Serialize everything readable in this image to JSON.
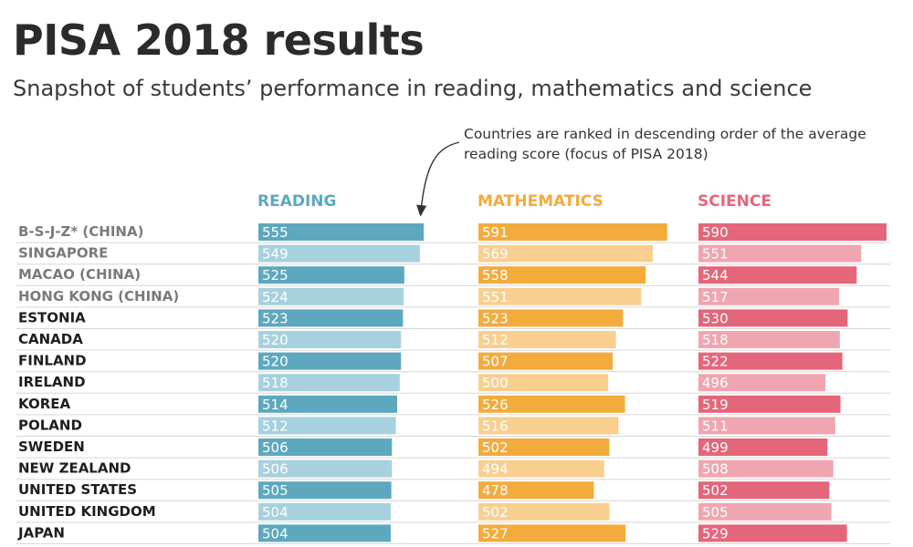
{
  "title": "PISA 2018 results",
  "subtitle": "Snapshot of students’ performance in reading, mathematics and science",
  "note": "Countries are ranked in descending order of the average reading score (focus of PISA 2018)",
  "colors": {
    "reading_dark": "#5da8bf",
    "reading_light": "#a7d1de",
    "math_dark": "#f3ab3c",
    "math_light": "#f8cf8f",
    "science_dark": "#e4667a",
    "science_light": "#f0a6b1",
    "country_gray": "#7a7a7a",
    "country_black": "#1e1e1e",
    "separator": "#d6d6d6"
  },
  "chart_data": {
    "type": "bar",
    "orientation": "horizontal",
    "categories": [
      "B-S-J-Z* (CHINA)",
      "SINGAPORE",
      "MACAO (CHINA)",
      "HONG KONG (CHINA)",
      "ESTONIA",
      "CANADA",
      "FINLAND",
      "IRELAND",
      "KOREA",
      "POLAND",
      "SWEDEN",
      "NEW ZEALAND",
      "UNITED STATES",
      "UNITED KINGDOM",
      "JAPAN"
    ],
    "category_emphasis": [
      "gray",
      "gray",
      "gray",
      "gray",
      "black",
      "black",
      "black",
      "black",
      "black",
      "black",
      "black",
      "black",
      "black",
      "black",
      "black"
    ],
    "series": [
      {
        "name": "READING",
        "color": "#5da8bf",
        "values": [
          555,
          549,
          525,
          524,
          523,
          520,
          520,
          518,
          514,
          512,
          506,
          506,
          505,
          504,
          504
        ]
      },
      {
        "name": "MATHEMATICS",
        "color": "#f3ab3c",
        "values": [
          591,
          569,
          558,
          551,
          523,
          512,
          507,
          500,
          526,
          516,
          502,
          494,
          478,
          502,
          527
        ]
      },
      {
        "name": "SCIENCE",
        "color": "#e4667a",
        "values": [
          590,
          551,
          544,
          517,
          530,
          518,
          522,
          496,
          519,
          511,
          499,
          508,
          502,
          505,
          529
        ]
      }
    ],
    "value_labels": "inside-bar-start",
    "layout": "small-multiples"
  }
}
